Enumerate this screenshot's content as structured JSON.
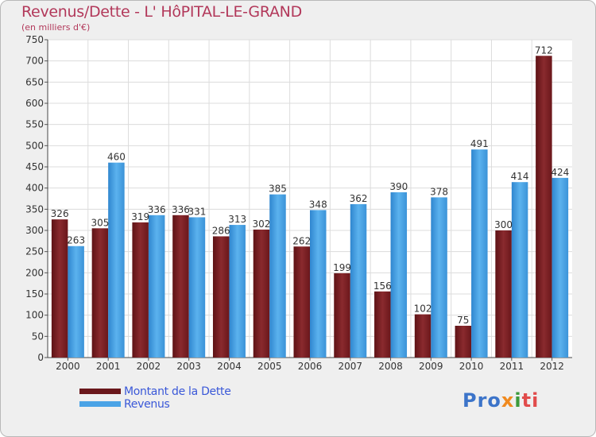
{
  "chart_data": {
    "type": "bar",
    "title": "Revenus/Dette - L' HôPITAL-LE-GRAND",
    "subtitle": "(en milliers d'€)",
    "xlabel": "",
    "ylabel": "",
    "ylim": [
      0,
      750
    ],
    "yticks": [
      0,
      50,
      100,
      150,
      200,
      250,
      300,
      350,
      400,
      450,
      500,
      550,
      600,
      650,
      700,
      750
    ],
    "grid": true,
    "categories": [
      "2000",
      "2001",
      "2002",
      "2003",
      "2004",
      "2005",
      "2006",
      "2007",
      "2008",
      "2009",
      "2010",
      "2011",
      "2012"
    ],
    "series": [
      {
        "name": "Montant de la Dette",
        "color": "#7a1f23",
        "values": [
          326,
          305,
          319,
          336,
          286,
          302,
          262,
          199,
          156,
          102,
          75,
          300,
          712
        ]
      },
      {
        "name": "Revenus",
        "color": "#4aa3e6",
        "values": [
          263,
          460,
          336,
          331,
          313,
          385,
          348,
          362,
          390,
          378,
          491,
          414,
          424
        ]
      }
    ],
    "legend_position": "bottom-left"
  },
  "logo": {
    "part1": "Pro",
    "part2": "x",
    "part3": "i",
    "part4": "ti"
  }
}
